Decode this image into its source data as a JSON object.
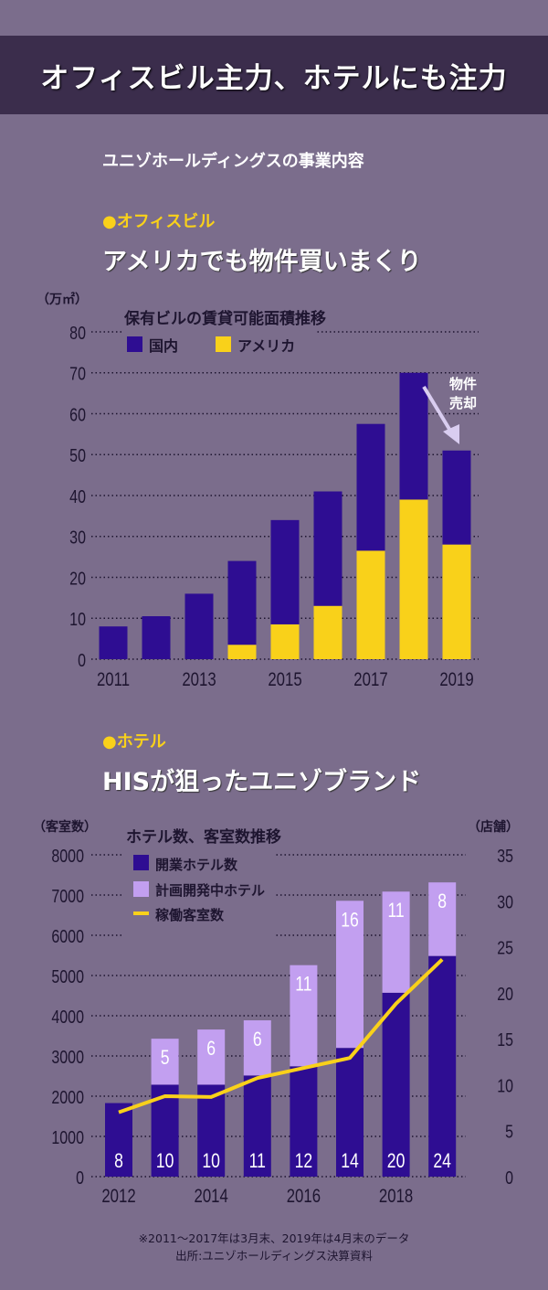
{
  "header": {
    "title": "オフィスビル主力、ホテルにも注力"
  },
  "subtitle": "ユニゾホールディングスの事業内容",
  "office": {
    "tag": "●オフィスビル",
    "headline": "アメリカでも物件買いまくり"
  },
  "hotel": {
    "tag": "●ホテル",
    "headline": "HISが狙ったユニゾブランド"
  },
  "colors": {
    "background": "#7b6d8c",
    "title_bar": "#3b2d4c",
    "domestic": "#2e0d92",
    "usa": "#f9d11a",
    "open_hotels": "#2e0d92",
    "planned_hotels": "#c29ff0",
    "rooms_line": "#f9d11a"
  },
  "chart_data": [
    {
      "type": "bar",
      "stacked": true,
      "title": "保有ビルの賃貸可能面積推移",
      "ylabel": "（万㎡）",
      "ylim": [
        0,
        80
      ],
      "yticks": [
        0,
        10,
        20,
        30,
        40,
        50,
        60,
        70,
        80
      ],
      "categories": [
        "2011",
        "2012",
        "2013",
        "2014",
        "2015",
        "2016",
        "2017",
        "2018",
        "2019"
      ],
      "xtick_labels": [
        "2011",
        "",
        "2013",
        "",
        "2015",
        "",
        "2017",
        "",
        "2019"
      ],
      "grid": "dotted horizontal",
      "legend": "top-left",
      "series": [
        {
          "name": "アメリカ",
          "values": [
            0,
            0,
            0,
            3.5,
            8.5,
            13,
            26.5,
            39,
            28
          ]
        },
        {
          "name": "国内",
          "values": [
            8,
            10.5,
            16,
            20.5,
            25.5,
            28,
            31,
            31,
            23
          ]
        }
      ],
      "annotation": "物件\n売却"
    },
    {
      "type": "bar+line",
      "stacked": true,
      "title": "ホテル数、客室数推移",
      "ylabel_left": "（客室数）",
      "ylabel_right": "（店舗）",
      "ylim_left": [
        0,
        8000
      ],
      "ylim_right": [
        0,
        35
      ],
      "yticks_left": [
        0,
        1000,
        2000,
        3000,
        4000,
        5000,
        6000,
        7000,
        8000
      ],
      "yticks_right": [
        0,
        5,
        10,
        15,
        20,
        25,
        30,
        35
      ],
      "categories": [
        "2012",
        "2013",
        "2014",
        "2015",
        "2016",
        "2017",
        "2018",
        "2019"
      ],
      "xtick_labels": [
        "2012",
        "",
        "2014",
        "",
        "2016",
        "",
        "2018",
        ""
      ],
      "grid": "dotted horizontal",
      "legend": "top-left",
      "series": [
        {
          "name": "開業ホテル数",
          "axis": "right",
          "values": [
            8,
            10,
            10,
            11,
            12,
            14,
            20,
            24
          ]
        },
        {
          "name": "計画開発中ホテル",
          "axis": "right",
          "values": [
            0,
            5,
            6,
            6,
            11,
            16,
            11,
            8
          ]
        },
        {
          "name": "稼働客室数",
          "axis": "left",
          "type": "line",
          "values": [
            1600,
            2000,
            1980,
            2450,
            2700,
            2950,
            4300,
            5400
          ]
        }
      ]
    }
  ],
  "footnote": {
    "line1": "※2011～2017年は3月末、2019年は4月末のデータ",
    "line2": "出所:ユニゾホールディングス決算資料"
  }
}
